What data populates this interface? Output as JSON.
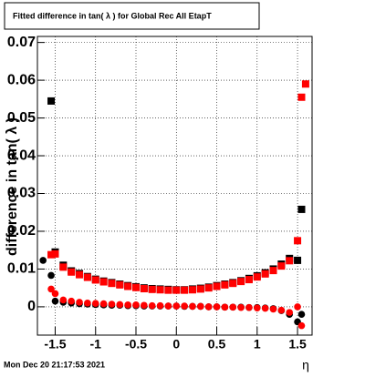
{
  "chart_data": {
    "type": "scatter",
    "title": "Fitted difference in tan( λ ) for Global Rec All EtapT",
    "y_label": "difference in tan( λ )",
    "x_label": "η",
    "timestamp": "Mon Dec 20 21:17:53 2021",
    "x": [
      -1.65,
      -1.55,
      -1.5,
      -1.4,
      -1.3,
      -1.2,
      -1.1,
      -1.0,
      -0.9,
      -0.8,
      -0.7,
      -0.6,
      -0.5,
      -0.4,
      -0.3,
      -0.2,
      -0.1,
      0,
      0.1,
      0.2,
      0.3,
      0.4,
      0.5,
      0.6,
      0.7,
      0.8,
      0.9,
      1.0,
      1.1,
      1.2,
      1.3,
      1.4,
      1.5,
      1.55,
      1.6
    ],
    "series": [
      {
        "color": "#000000",
        "marker": "square",
        "values": [
          null,
          0.0545,
          0.0145,
          0.011,
          0.0095,
          0.0088,
          0.008,
          0.0073,
          0.0068,
          0.0064,
          0.006,
          0.0056,
          0.0053,
          0.005,
          0.0048,
          0.0047,
          0.0046,
          0.0045,
          0.0045,
          0.0047,
          0.0049,
          0.0052,
          0.0056,
          0.006,
          0.0064,
          0.0069,
          0.0075,
          0.0082,
          0.009,
          0.01,
          0.0113,
          0.0128,
          0.0123,
          0.0258,
          null
        ]
      },
      {
        "color": "#ff0000",
        "marker": "square",
        "values": [
          null,
          0.0138,
          0.014,
          0.0105,
          0.0092,
          0.0085,
          0.0078,
          0.0071,
          0.0066,
          0.0062,
          0.0058,
          0.0054,
          0.0051,
          0.0048,
          0.0046,
          0.0045,
          0.0044,
          0.0044,
          0.0044,
          0.0045,
          0.0047,
          0.005,
          0.0054,
          0.0058,
          0.0062,
          0.0067,
          0.0072,
          0.0079,
          0.0087,
          0.0096,
          0.0108,
          0.0122,
          0.0175,
          0.0555,
          0.059
        ]
      },
      {
        "color": "#000000",
        "marker": "circle",
        "values": [
          0.0123,
          0.0083,
          0.0015,
          0.0012,
          0.001,
          0.0008,
          0.0007,
          0.0006,
          0.0005,
          0.0004,
          0.0004,
          0.0003,
          0.0003,
          0.0002,
          0.0002,
          0.0002,
          0.0002,
          0.0002,
          0.0001,
          0.0001,
          0.0001,
          0.0,
          0.0,
          -0.0001,
          -0.0001,
          -0.0001,
          -0.0002,
          -0.0002,
          -0.0003,
          -0.0005,
          -0.001,
          -0.002,
          -0.004,
          -0.002,
          null
        ]
      },
      {
        "color": "#ff0000",
        "marker": "circle",
        "values": [
          null,
          0.0047,
          0.0035,
          0.0018,
          0.0015,
          0.0012,
          0.001,
          0.0009,
          0.0008,
          0.0007,
          0.0006,
          0.0005,
          0.0005,
          0.0004,
          0.0003,
          0.0003,
          0.0002,
          0.0002,
          0.0002,
          0.0001,
          0.0001,
          0.0,
          0.0,
          -0.0001,
          -0.0001,
          -0.0002,
          -0.0002,
          -0.0003,
          -0.0004,
          -0.0006,
          -0.0009,
          -0.0015,
          0.0,
          -0.005,
          null
        ]
      }
    ],
    "xlim": [
      -1.72,
      1.68
    ],
    "ylim": [
      -0.0075,
      0.0716
    ],
    "xticks": [
      -1.5,
      -1,
      -0.5,
      0,
      0.5,
      1,
      1.5
    ],
    "yticks": [
      0,
      {
        "value": 0.01,
        "label": "0.01"
      },
      {
        "value": 0.02,
        "label": "0.02"
      },
      {
        "value": 0.03,
        "label": "0.03"
      },
      {
        "value": 0.04,
        "label": "0.04"
      },
      {
        "value": 0.05,
        "label": "0.05"
      },
      {
        "value": 0.06,
        "label": "0.06"
      },
      {
        "value": 0.07,
        "label": "0.07"
      }
    ],
    "grid": true
  }
}
